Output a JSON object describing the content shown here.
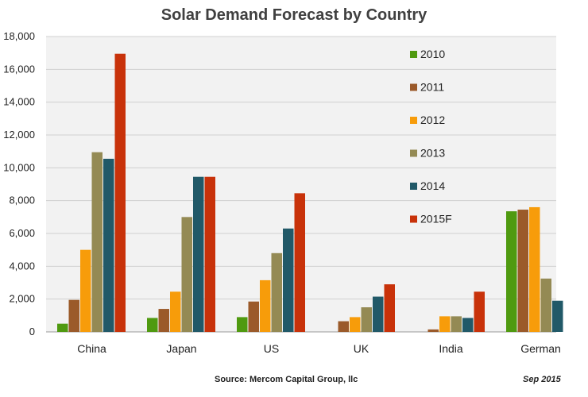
{
  "chart_data": {
    "type": "bar",
    "title": "Solar Demand Forecast by Country",
    "xlabel": "",
    "ylabel": "",
    "ylim": [
      0,
      18000
    ],
    "yticks": [
      "0",
      "2,000",
      "4,000",
      "6,000",
      "8,000",
      "10,000",
      "12,000",
      "14,000",
      "16,000",
      "18,000"
    ],
    "categories": [
      "China",
      "Japan",
      "US",
      "UK",
      "India",
      "German"
    ],
    "series": [
      {
        "name": "2010",
        "color": "#4f9a10",
        "values": [
          500,
          850,
          900,
          0,
          0,
          7350
        ]
      },
      {
        "name": "2011",
        "color": "#9b5a2a",
        "values": [
          1950,
          1400,
          1850,
          650,
          150,
          7450
        ]
      },
      {
        "name": "2012",
        "color": "#f79c0a",
        "values": [
          5000,
          2450,
          3150,
          900,
          950,
          7600
        ]
      },
      {
        "name": "2013",
        "color": "#948a54",
        "values": [
          10950,
          7000,
          4800,
          1500,
          950,
          3250
        ]
      },
      {
        "name": "2014",
        "color": "#215968",
        "values": [
          10550,
          9450,
          6300,
          2150,
          850,
          1900
        ]
      },
      {
        "name": "2015F",
        "color": "#c8320a",
        "values": [
          16950,
          9450,
          8450,
          2900,
          2450,
          0
        ]
      }
    ],
    "legend_position": "top-right",
    "grid": true,
    "source": "Source: Mercom Capital Group, llc",
    "date": "Sep 2015"
  }
}
